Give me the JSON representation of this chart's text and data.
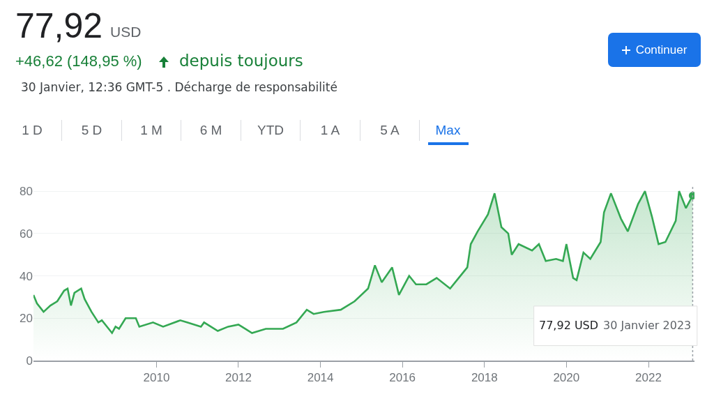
{
  "chart_data": {
    "type": "area",
    "title": "77,92",
    "annotations": [
      "USD",
      "+46,62 (148,95 %)",
      "depuis toujours",
      "30 Janvier, 12:36 GMT-5 . Décharge de responsabilité",
      "1 D",
      "5 D",
      "1 M",
      "6 M",
      "YTD",
      "1 A",
      "5 A",
      "Max",
      "Continuer",
      "77,92 USD",
      "30 Janvier 2023"
    ],
    "x": [
      "2007-01",
      "2007-02",
      "2007-04",
      "2007-06",
      "2007-08",
      "2007-10",
      "2007-11",
      "2007-12",
      "2008-01",
      "2008-03",
      "2008-04",
      "2008-06",
      "2008-08",
      "2008-09",
      "2008-12",
      "2009-01",
      "2009-02",
      "2009-04",
      "2009-07",
      "2009-08",
      "2009-12",
      "2010-03",
      "2010-08",
      "2010-10",
      "2011-02",
      "2011-03",
      "2011-07",
      "2011-10",
      "2012-01",
      "2012-03",
      "2012-05",
      "2012-09",
      "2013-02",
      "2013-06",
      "2013-09",
      "2013-11",
      "2014-02",
      "2014-07",
      "2014-11",
      "2015-03",
      "2015-05",
      "2015-07",
      "2015-10",
      "2015-12",
      "2016-03",
      "2016-05",
      "2016-08",
      "2016-11",
      "2017-03",
      "2017-05",
      "2017-08",
      "2017-09",
      "2017-11",
      "2018-02",
      "2018-04",
      "2018-06",
      "2018-08",
      "2018-09",
      "2018-11",
      "2019-03",
      "2019-05",
      "2019-07",
      "2019-10",
      "2019-12",
      "2020-01",
      "2020-03",
      "2020-04",
      "2020-06",
      "2020-08",
      "2020-11",
      "2020-12",
      "2021-02",
      "2021-05",
      "2021-07",
      "2021-10",
      "2021-12",
      "2022-02",
      "2022-04",
      "2022-06",
      "2022-09",
      "2022-10",
      "2022-12",
      "2023-01-30"
    ],
    "series": [
      {
        "color": "#34a853",
        "values": [
          31,
          27,
          23,
          26,
          28,
          33,
          34,
          26,
          32,
          34,
          29,
          23,
          18,
          19,
          13,
          16,
          15,
          20,
          20,
          16,
          18,
          16,
          19,
          18,
          16,
          18,
          14,
          16,
          17,
          15,
          13,
          15,
          15,
          18,
          24,
          22,
          23,
          24,
          28,
          34,
          45,
          37,
          44,
          31,
          40,
          36,
          36,
          39,
          34,
          38,
          44,
          55,
          61,
          69,
          79,
          63,
          60,
          50,
          55,
          52,
          55,
          47,
          48,
          47,
          55,
          39,
          38,
          51,
          48,
          56,
          70,
          79,
          67,
          61,
          74,
          80,
          68,
          55,
          56,
          66,
          80,
          72,
          77.92
        ]
      }
    ],
    "xlim": [
      "2007-01",
      "2023-02-15"
    ],
    "xticks": [
      {
        "value": "2010",
        "label": "2010"
      },
      {
        "value": "2012",
        "label": "2012"
      },
      {
        "value": "2014",
        "label": "2014"
      },
      {
        "value": "2016",
        "label": "2016"
      },
      {
        "value": "2018",
        "label": "2018"
      },
      {
        "value": "2020",
        "label": "2020"
      },
      {
        "value": "2022",
        "label": "2022"
      }
    ],
    "ylim": [
      0,
      83
    ],
    "yticks": [
      0,
      20,
      40,
      60,
      80
    ],
    "ref_lines": [
      {
        "axis": "x",
        "value": "2023-01-30",
        "color": "#9aa0a6",
        "line_style": "dotted"
      }
    ],
    "grid": "y"
  }
}
